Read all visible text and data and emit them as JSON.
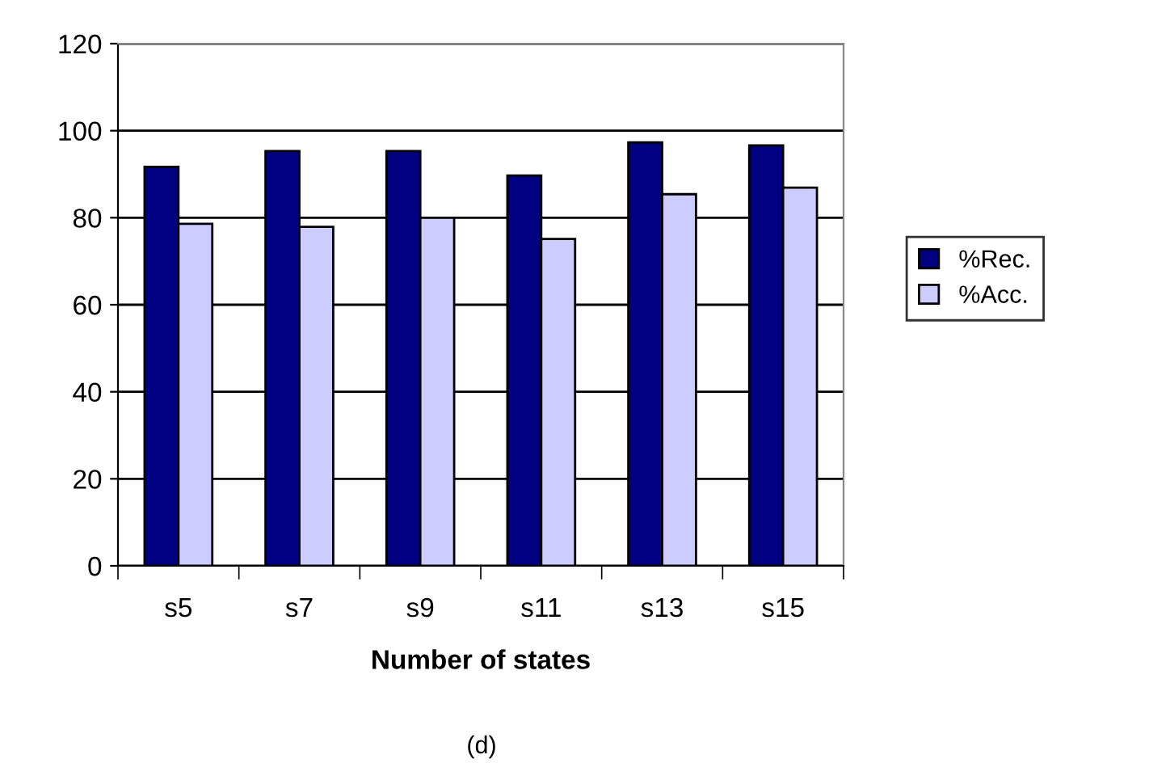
{
  "chart_data": {
    "type": "bar",
    "xlabel": "Number of states",
    "categories": [
      "s5",
      "s7",
      "s9",
      "s11",
      "s13",
      "s15"
    ],
    "series": [
      {
        "name": "%Rec.",
        "color": "#000080",
        "values": [
          91.7,
          95.3,
          95.3,
          89.7,
          97.3,
          96.6
        ]
      },
      {
        "name": "%Acc.",
        "color": "#ccccff",
        "values": [
          78.6,
          77.9,
          80,
          75.1,
          85.4,
          86.9
        ]
      }
    ],
    "ylim": [
      0,
      120
    ],
    "yticks": [
      0,
      20,
      40,
      60,
      80,
      100,
      120
    ],
    "grid": "y",
    "legend": "right",
    "annotations": [
      "(d)"
    ]
  }
}
